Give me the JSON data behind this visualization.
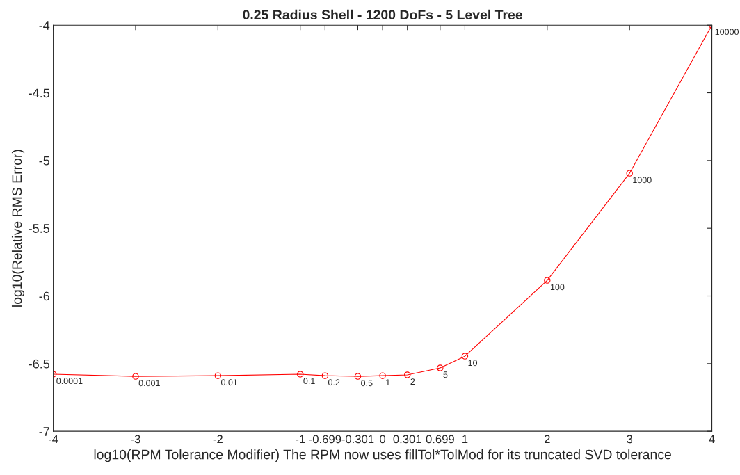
{
  "chart_data": {
    "type": "line",
    "title": "0.25 Radius Shell - 1200 DoFs - 5 Level Tree",
    "xlabel": "log10(RPM Tolerance Modifier) The RPM now uses fillTol*TolMod for its truncated SVD tolerance",
    "ylabel": "log10(Relative RMS Error)",
    "x": [
      -4,
      -3,
      -2,
      -1,
      -0.699,
      -0.301,
      0,
      0.301,
      0.699,
      1,
      2,
      3,
      4
    ],
    "series": [
      {
        "color": "#ff0000",
        "values": [
          -6.578,
          -6.594,
          -6.589,
          -6.578,
          -6.589,
          -6.594,
          -6.589,
          -6.583,
          -6.532,
          -6.445,
          -5.885,
          -5.094,
          -4.0
        ]
      }
    ],
    "marker": "circle",
    "line_style": "solid",
    "grid": false,
    "legend": false,
    "xlim": [
      -4,
      4
    ],
    "xticks": [
      -4,
      -3,
      -2,
      -1,
      -0.699,
      -0.301,
      0,
      0.301,
      0.699,
      1,
      2,
      3,
      4
    ],
    "ylim": [
      -7,
      -4
    ],
    "yticks": [
      -7,
      -6.5,
      -6,
      -5.5,
      -5,
      -4.5,
      -4
    ],
    "annotations": [
      {
        "text": "0.0001",
        "x": -4,
        "y": -6.578
      },
      {
        "text": "0.001",
        "x": -3,
        "y": -6.594
      },
      {
        "text": "0.01",
        "x": -2,
        "y": -6.589
      },
      {
        "text": "0.1",
        "x": -1,
        "y": -6.578
      },
      {
        "text": "0.2",
        "x": -0.699,
        "y": -6.589
      },
      {
        "text": "0.5",
        "x": -0.301,
        "y": -6.594
      },
      {
        "text": "1",
        "x": 0,
        "y": -6.589
      },
      {
        "text": "2",
        "x": 0.301,
        "y": -6.583
      },
      {
        "text": "5",
        "x": 0.699,
        "y": -6.532
      },
      {
        "text": "10",
        "x": 1,
        "y": -6.445
      },
      {
        "text": "100",
        "x": 2,
        "y": -5.885
      },
      {
        "text": "1000",
        "x": 3,
        "y": -5.094
      },
      {
        "text": "10000",
        "x": 4,
        "y": -4.0
      }
    ]
  }
}
